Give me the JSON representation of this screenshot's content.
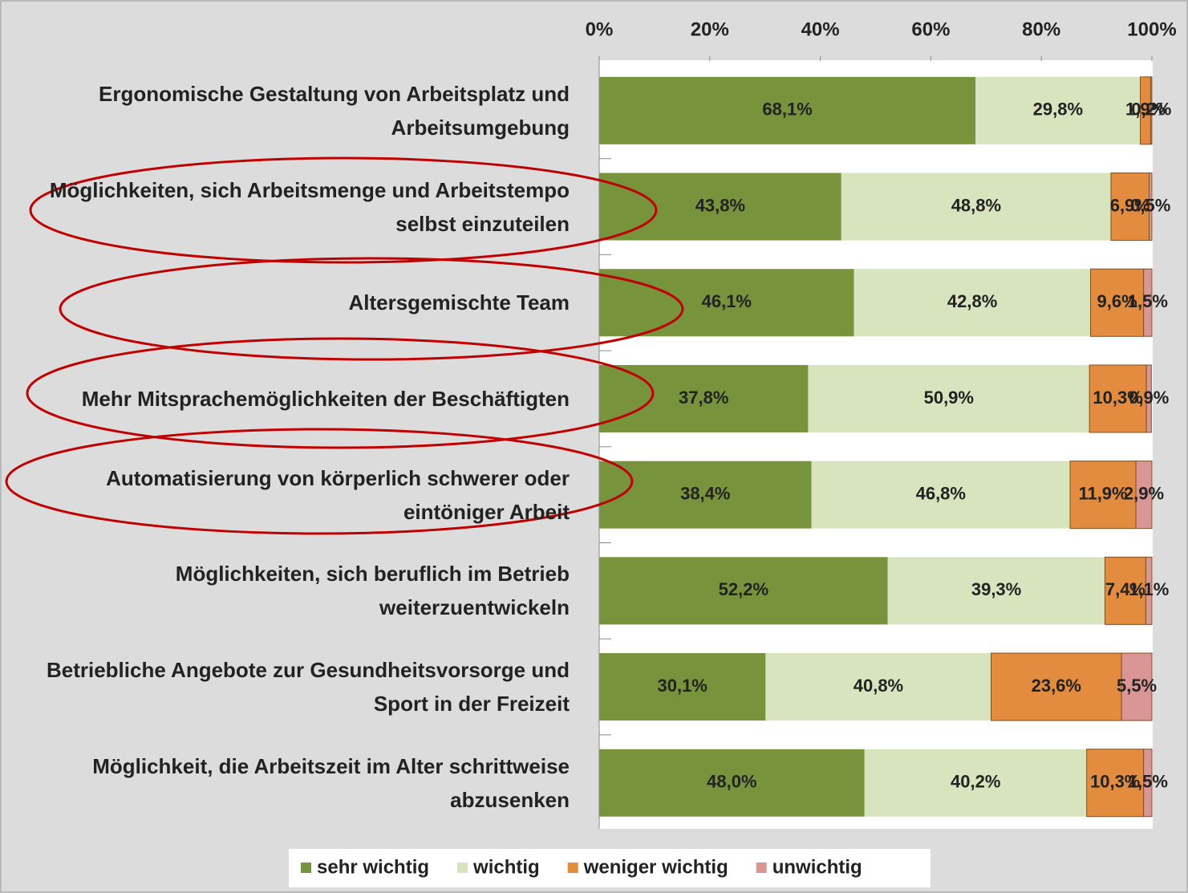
{
  "chart_data": {
    "type": "stacked-barh",
    "categories": [
      "Ergonomische Gestaltung von Arbeitsplatz und Arbeitsumgebung",
      "Möglichkeiten, sich Arbeitsmenge und Arbeitstempo selbst einzuteilen",
      "Altersgemischte Team",
      "Mehr Mitsprachemöglichkeiten der Beschäftigten",
      "Automatisierung von körperlich schwerer oder eintöniger Arbeit",
      "Möglichkeiten, sich beruflich im Betrieb weiterzuentwickeln",
      "Betriebliche Angebote zur Gesundheitsvorsorge und Sport in der Freizeit",
      "Möglichkeit, die Arbeitszeit im Alter schrittweise abzusenken"
    ],
    "series": [
      {
        "name": "sehr wichtig",
        "color": "#77933c",
        "values": [
          68.1,
          43.8,
          46.1,
          37.8,
          38.4,
          52.2,
          30.1,
          48.0
        ],
        "value_labels": [
          "68,1%",
          "43,8%",
          "46,1%",
          "37,8%",
          "38,4%",
          "52,2%",
          "30,1%",
          "48,0%"
        ]
      },
      {
        "name": "wichtig",
        "color": "#d7e4bd",
        "values": [
          29.8,
          48.8,
          42.8,
          50.9,
          46.8,
          39.3,
          40.8,
          40.2
        ],
        "value_labels": [
          "29,8%",
          "48,8%",
          "42,8%",
          "50,9%",
          "46,8%",
          "39,3%",
          "40,8%",
          "40,2%"
        ]
      },
      {
        "name": "weniger wichtig",
        "color": "#e38b3f",
        "values": [
          1.9,
          6.9,
          9.6,
          10.3,
          11.9,
          7.4,
          23.6,
          10.3
        ],
        "value_labels": [
          "1,9%",
          "6,9%",
          "9,6%",
          "10,3%",
          "11,9%",
          "7,4%",
          "23,6%",
          "10,3%"
        ]
      },
      {
        "name": "unwichtig",
        "color": "#d99694",
        "values": [
          0.2,
          0.5,
          1.5,
          0.9,
          2.9,
          1.1,
          5.5,
          1.5
        ],
        "value_labels": [
          "0,2%",
          "0,5%",
          "1,5%",
          "0,9%",
          "2,9%",
          "1,1%",
          "5,5%",
          "1,5%"
        ]
      }
    ],
    "xlim": [
      0,
      100
    ],
    "xticks": [
      {
        "value": 0,
        "label": "0%"
      },
      {
        "value": 20,
        "label": "20%"
      },
      {
        "value": 40,
        "label": "40%"
      },
      {
        "value": 60,
        "label": "60%"
      },
      {
        "value": 80,
        "label": "80%"
      },
      {
        "value": 100,
        "label": "100%"
      }
    ],
    "legend": "bottom"
  }
}
